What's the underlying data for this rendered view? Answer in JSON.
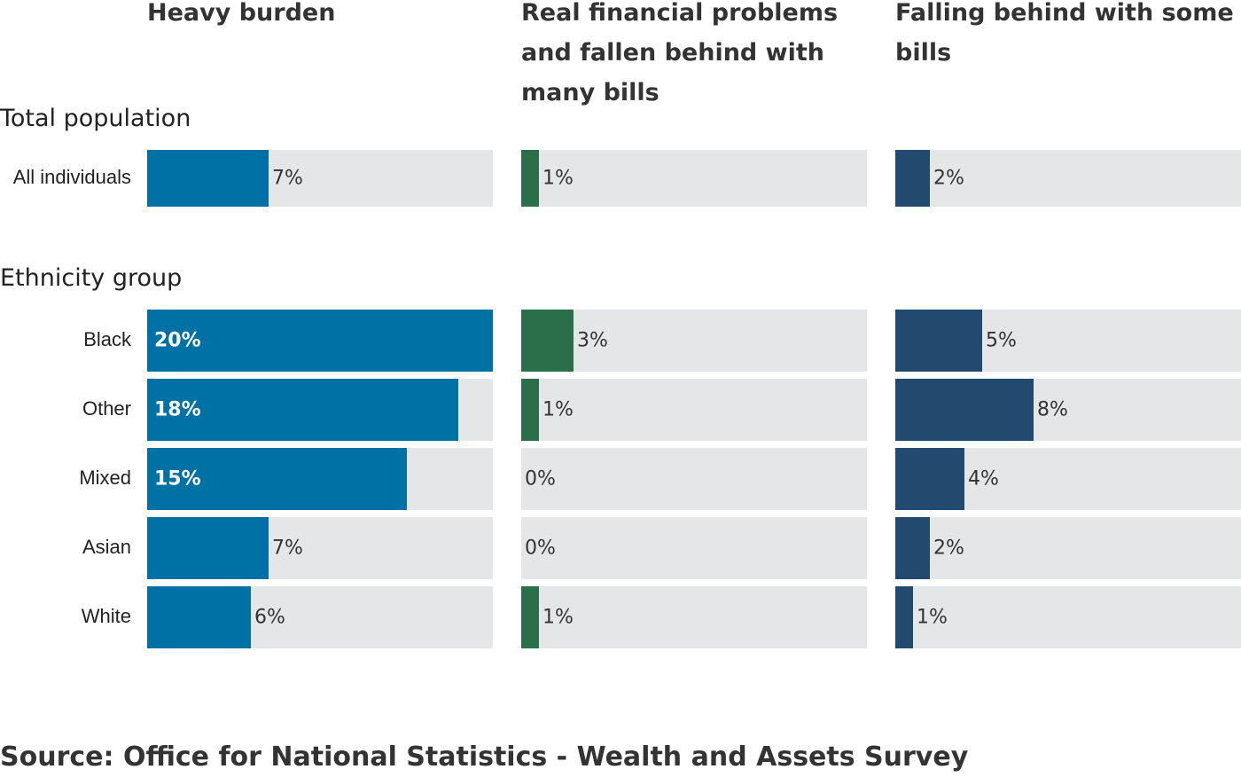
{
  "chart_data": {
    "type": "bar",
    "orientation": "horizontal",
    "panels": [
      {
        "title": "Heavy burden",
        "color": "#0071a4"
      },
      {
        "title": "Real financial problems and fallen behind with many bills",
        "color": "#2a6e4a"
      },
      {
        "title": "Falling behind with some bills",
        "color": "#224a6e"
      }
    ],
    "groups": [
      {
        "title": "Total population",
        "rows": [
          {
            "label": "All individuals",
            "values": [
              7,
              1,
              2
            ],
            "labels": [
              "7%",
              "1%",
              "2%"
            ]
          }
        ]
      },
      {
        "title": "Ethnicity group",
        "rows": [
          {
            "label": "Black",
            "values": [
              20,
              3,
              5
            ],
            "labels": [
              "20%",
              "3%",
              "5%"
            ]
          },
          {
            "label": "Other",
            "values": [
              18,
              1,
              8
            ],
            "labels": [
              "18%",
              "1%",
              "8%"
            ]
          },
          {
            "label": "Mixed",
            "values": [
              15,
              0,
              4
            ],
            "labels": [
              "15%",
              "0%",
              "4%"
            ]
          },
          {
            "label": "Asian",
            "values": [
              7,
              0,
              2
            ],
            "labels": [
              "7%",
              "0%",
              "2%"
            ]
          },
          {
            "label": "White",
            "values": [
              6,
              1,
              1
            ],
            "labels": [
              "6%",
              "1%",
              "1%"
            ]
          }
        ]
      }
    ],
    "xlim": [
      0,
      20
    ],
    "grid": false,
    "legend": "none"
  },
  "source": "Source: Office for National Statistics - Wealth and Assets Survey"
}
